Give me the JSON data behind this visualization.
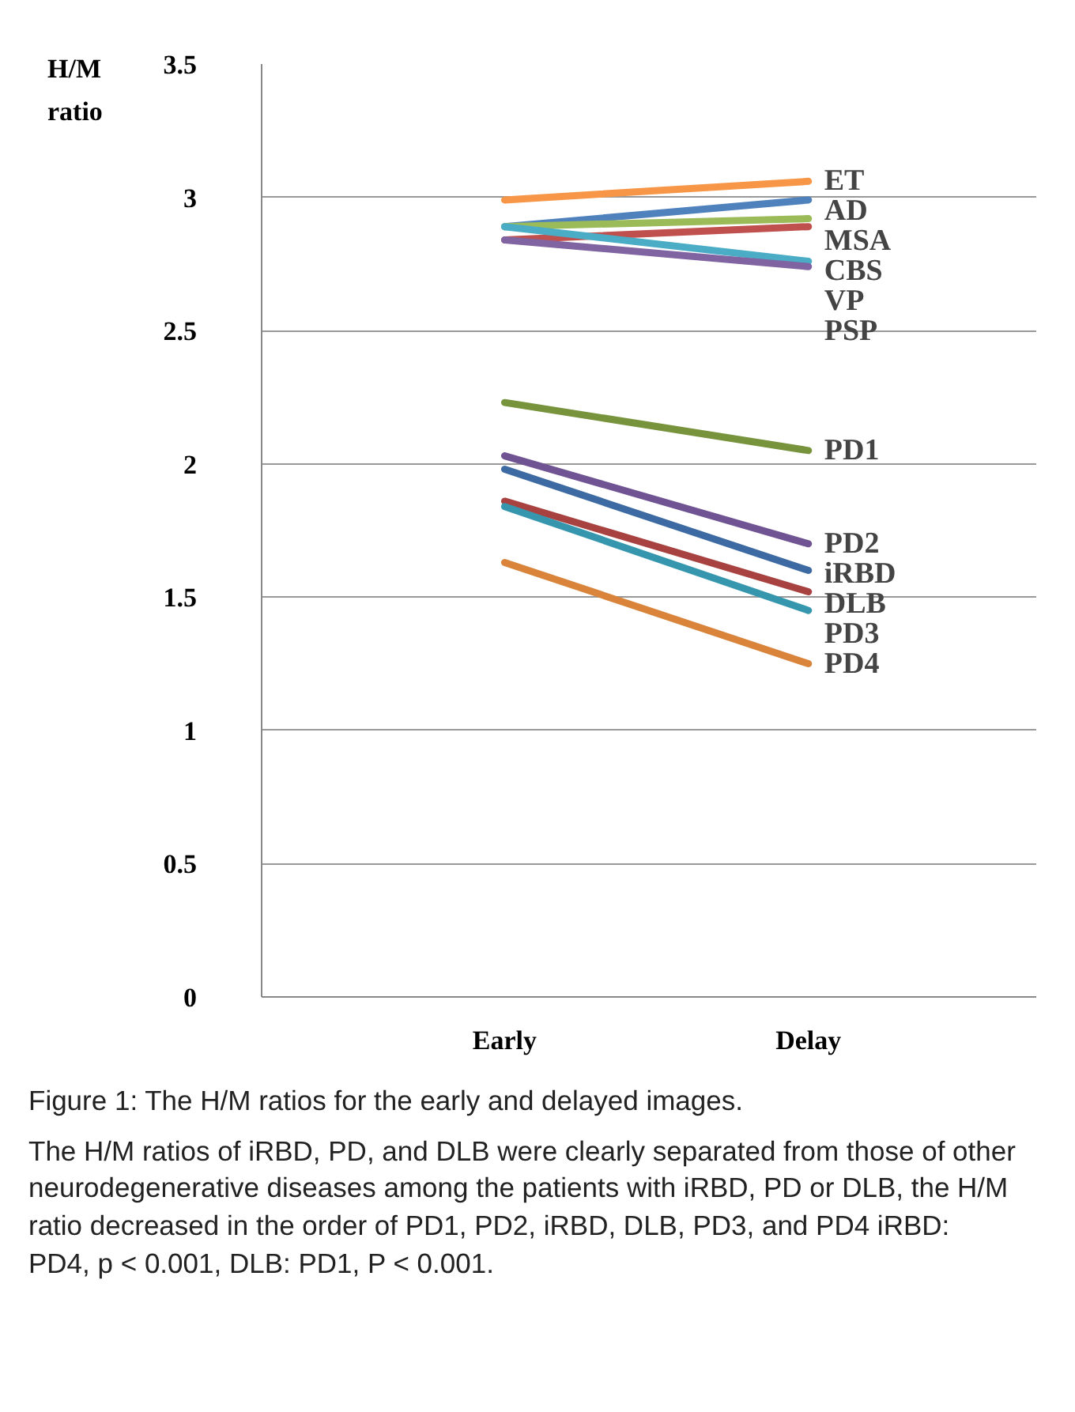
{
  "chart_data": {
    "type": "line",
    "title": "Figure 1: The H/M ratios for the early and delayed images.",
    "ylabel": "H/M ratio",
    "categories": [
      "Early",
      "Delay"
    ],
    "series": [
      {
        "name": "ET",
        "color": "#f79646",
        "values": [
          2.99,
          3.06
        ]
      },
      {
        "name": "AD",
        "color": "#4f81bd",
        "values": [
          2.89,
          2.99
        ]
      },
      {
        "name": "MSA",
        "color": "#9bbb59",
        "values": [
          2.89,
          2.92
        ]
      },
      {
        "name": "CBS",
        "color": "#c0504d",
        "values": [
          2.84,
          2.89
        ]
      },
      {
        "name": "VP",
        "color": "#4bacc6",
        "values": [
          2.89,
          2.76
        ]
      },
      {
        "name": "PSP",
        "color": "#8064a2",
        "values": [
          2.84,
          2.74
        ]
      },
      {
        "name": "PD1",
        "color": "#77933c",
        "values": [
          2.23,
          2.05
        ]
      },
      {
        "name": "PD2",
        "color": "#6f5393",
        "values": [
          2.03,
          1.7
        ]
      },
      {
        "name": "iRBD",
        "color": "#3d6aa2",
        "values": [
          1.98,
          1.6
        ]
      },
      {
        "name": "DLB",
        "color": "#a84240",
        "values": [
          1.86,
          1.52
        ]
      },
      {
        "name": "PD3",
        "color": "#3596ad",
        "values": [
          1.84,
          1.45
        ]
      },
      {
        "name": "PD4",
        "color": "#d9843a",
        "values": [
          1.63,
          1.25
        ]
      }
    ],
    "ylim": [
      0,
      3.5
    ],
    "yticks": [
      0,
      0.5,
      1,
      1.5,
      2,
      2.5,
      3,
      3.5
    ],
    "grid": "y",
    "marker": "none",
    "line_style": "solid",
    "annotations": [
      "The H/M ratios of iRBD, PD, and DLB were clearly separated from those of other neurodegenerative diseases among the patients with iRBD, PD or DLB, the H/M ratio decreased in the order of PD1, PD2, iRBD, DLB, PD3, and PD4 iRBD: PD4, p < 0.001, DLB: PD1, P < 0.001."
    ]
  }
}
